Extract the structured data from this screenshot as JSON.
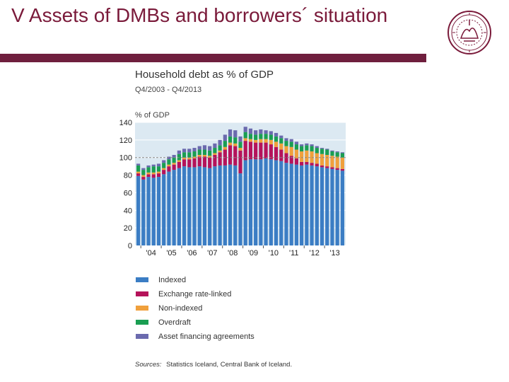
{
  "slide": {
    "title": "V Assets of DMBs and borrowers´ situation"
  },
  "colors": {
    "title_text": "#7a1a3a",
    "title_rule": "#6f1f3e",
    "plot_background": "#dce9f2"
  },
  "logo": {
    "kind": "university-seal",
    "color": "#7a1a3a"
  },
  "chart_data": {
    "type": "bar",
    "stacked": true,
    "title": "Household debt as % of GDP",
    "subtitle": "Q4/2003 - Q4/2013",
    "ylabel": "% of GDP",
    "ylim": [
      0,
      140
    ],
    "yticks": [
      0,
      20,
      40,
      60,
      80,
      100,
      120,
      140
    ],
    "grid": true,
    "reference_line": 100,
    "year_labels": [
      "'04",
      "'05",
      "'06",
      "'07",
      "'08",
      "'09",
      "'10",
      "'11",
      "'12",
      "'13"
    ],
    "categories": [
      "Q4/2003",
      "Q1/2004",
      "Q2/2004",
      "Q3/2004",
      "Q4/2004",
      "Q1/2005",
      "Q2/2005",
      "Q3/2005",
      "Q4/2005",
      "Q1/2006",
      "Q2/2006",
      "Q3/2006",
      "Q4/2006",
      "Q1/2007",
      "Q2/2007",
      "Q3/2007",
      "Q4/2007",
      "Q1/2008",
      "Q2/2008",
      "Q3/2008",
      "Q4/2008",
      "Q1/2009",
      "Q2/2009",
      "Q3/2009",
      "Q4/2009",
      "Q1/2010",
      "Q2/2010",
      "Q3/2010",
      "Q4/2010",
      "Q1/2011",
      "Q2/2011",
      "Q3/2011",
      "Q4/2011",
      "Q1/2012",
      "Q2/2012",
      "Q3/2012",
      "Q4/2012",
      "Q1/2013",
      "Q2/2013",
      "Q3/2013",
      "Q4/2013"
    ],
    "series": [
      {
        "name": "Indexed",
        "color": "#3b7dc4",
        "values": [
          79,
          75,
          78,
          77,
          78,
          81,
          84,
          86,
          88,
          90,
          89,
          89,
          90,
          89,
          88,
          90,
          91,
          91,
          92,
          91,
          82,
          97,
          98,
          98,
          98,
          99,
          98,
          97,
          96,
          94,
          93,
          92,
          91,
          92,
          91,
          90,
          89,
          88,
          87,
          86,
          85
        ]
      },
      {
        "name": "Exchange rate-linked",
        "color": "#b5135a",
        "values": [
          3,
          3,
          3,
          4,
          4,
          5,
          6,
          6,
          7,
          8,
          9,
          10,
          11,
          12,
          12,
          13,
          15,
          18,
          22,
          22,
          26,
          22,
          20,
          19,
          19,
          18,
          17,
          15,
          13,
          11,
          9,
          7,
          4,
          3,
          3,
          3,
          2,
          2,
          2,
          2,
          2
        ]
      },
      {
        "name": "Non-indexed",
        "color": "#f0a03c",
        "values": [
          2,
          2,
          2,
          2,
          2,
          2,
          2,
          2,
          2,
          2,
          2,
          2,
          2,
          2,
          2,
          2,
          2,
          3,
          3,
          3,
          3,
          3,
          3,
          3,
          4,
          4,
          5,
          6,
          7,
          8,
          10,
          10,
          12,
          13,
          13,
          12,
          13,
          13,
          13,
          13,
          13
        ]
      },
      {
        "name": "Overdraft",
        "color": "#1a9e52",
        "values": [
          7,
          6,
          6,
          7,
          6,
          6,
          6,
          6,
          7,
          6,
          6,
          6,
          6,
          6,
          6,
          6,
          6,
          7,
          7,
          7,
          7,
          7,
          6,
          6,
          6,
          6,
          6,
          6,
          6,
          6,
          6,
          6,
          6,
          6,
          6,
          6,
          6,
          6,
          5,
          5,
          5
        ]
      },
      {
        "name": "Asset financing agreements",
        "color": "#6b6aae",
        "values": [
          2,
          2,
          2,
          2,
          3,
          3,
          3,
          3,
          4,
          4,
          4,
          4,
          4,
          5,
          5,
          5,
          6,
          7,
          8,
          8,
          6,
          6,
          6,
          5,
          5,
          4,
          4,
          4,
          3,
          3,
          3,
          3,
          2,
          2,
          2,
          2,
          1,
          1,
          1,
          1,
          1
        ]
      }
    ],
    "legend_position": "bottom",
    "source_prefix": "Sources:",
    "source_text": "Statistics Iceland, Central Bank of Iceland."
  }
}
